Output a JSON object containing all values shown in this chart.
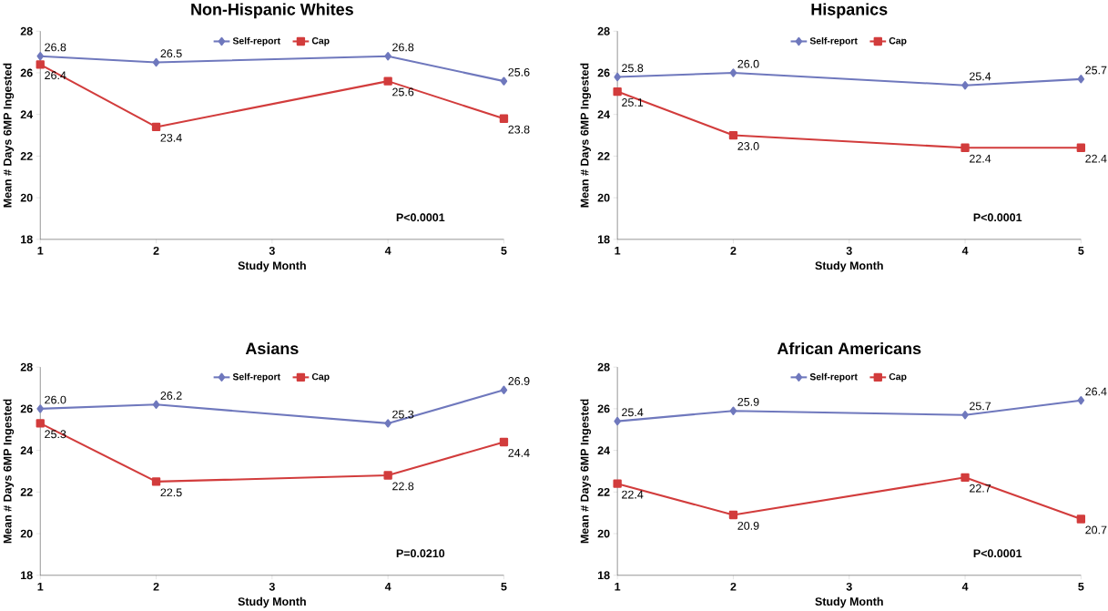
{
  "chart_data": [
    {
      "type": "line",
      "title": "Non-Hispanic Whites",
      "xlabel": "Study Month",
      "ylabel": "Mean # Days 6MP Ingested",
      "x": [
        1,
        2,
        4,
        5
      ],
      "xlim": [
        1,
        5
      ],
      "xticks": [
        1,
        2,
        3,
        4,
        5
      ],
      "ylim": [
        18,
        28
      ],
      "yticks": [
        18,
        20,
        22,
        24,
        26,
        28
      ],
      "legend": "top",
      "annotations": [
        "P<0.0001"
      ],
      "series": [
        {
          "name": "Self-report",
          "color": "#6f78bd",
          "marker": "diamond",
          "values": [
            26.8,
            26.5,
            26.8,
            25.6
          ],
          "value_labels": [
            "26.8",
            "26.5",
            "26.8",
            "25.6"
          ]
        },
        {
          "name": "Cap",
          "color": "#d23c3c",
          "marker": "square",
          "values": [
            26.4,
            23.4,
            25.6,
            23.8
          ],
          "value_labels": [
            "26.4",
            "23.4",
            "25.6",
            "23.8"
          ]
        }
      ]
    },
    {
      "type": "line",
      "title": "Hispanics",
      "xlabel": "Study Month",
      "ylabel": "Mean # Days 6MP Ingested",
      "x": [
        1,
        2,
        4,
        5
      ],
      "xlim": [
        1,
        5
      ],
      "xticks": [
        1,
        2,
        3,
        4,
        5
      ],
      "ylim": [
        18,
        28
      ],
      "yticks": [
        18,
        20,
        22,
        24,
        26,
        28
      ],
      "legend": "top",
      "annotations": [
        "P<0.0001"
      ],
      "series": [
        {
          "name": "Self-report",
          "color": "#6f78bd",
          "marker": "diamond",
          "values": [
            25.8,
            26.0,
            25.4,
            25.7
          ],
          "value_labels": [
            "25.8",
            "26.0",
            "25.4",
            "25.7"
          ]
        },
        {
          "name": "Cap",
          "color": "#d23c3c",
          "marker": "square",
          "values": [
            25.1,
            23.0,
            22.4,
            22.4
          ],
          "value_labels": [
            "25.1",
            "23.0",
            "22.4",
            "22.4"
          ]
        }
      ]
    },
    {
      "type": "line",
      "title": "Asians",
      "xlabel": "Study Month",
      "ylabel": "Mean # Days 6MP Ingested",
      "x": [
        1,
        2,
        4,
        5
      ],
      "xlim": [
        1,
        5
      ],
      "xticks": [
        1,
        2,
        3,
        4,
        5
      ],
      "ylim": [
        18,
        28
      ],
      "yticks": [
        18,
        20,
        22,
        24,
        26,
        28
      ],
      "legend": "top",
      "annotations": [
        "P=0.0210"
      ],
      "series": [
        {
          "name": "Self-report",
          "color": "#6f78bd",
          "marker": "diamond",
          "values": [
            26.0,
            26.2,
            25.3,
            26.9
          ],
          "value_labels": [
            "26.0",
            "26.2",
            "25.3",
            "26.9"
          ]
        },
        {
          "name": "Cap",
          "color": "#d23c3c",
          "marker": "square",
          "values": [
            25.3,
            22.5,
            22.8,
            24.4
          ],
          "value_labels": [
            "25.3",
            "22.5",
            "22.8",
            "24.4"
          ]
        }
      ]
    },
    {
      "type": "line",
      "title": "African Americans",
      "xlabel": "Study Month",
      "ylabel": "Mean # Days 6MP Ingested",
      "x": [
        1,
        2,
        4,
        5
      ],
      "xlim": [
        1,
        5
      ],
      "xticks": [
        1,
        2,
        3,
        4,
        5
      ],
      "ylim": [
        18,
        28
      ],
      "yticks": [
        18,
        20,
        22,
        24,
        26,
        28
      ],
      "legend": "top",
      "annotations": [
        "P<0.0001"
      ],
      "series": [
        {
          "name": "Self-report",
          "color": "#6f78bd",
          "marker": "diamond",
          "values": [
            25.4,
            25.9,
            25.7,
            26.4
          ],
          "value_labels": [
            "25.4",
            "25.9",
            "25.7",
            "26.4"
          ]
        },
        {
          "name": "Cap",
          "color": "#d23c3c",
          "marker": "square",
          "values": [
            22.4,
            20.9,
            22.7,
            20.7
          ],
          "value_labels": [
            "22.4",
            "20.9",
            "22.7",
            "20.7"
          ]
        }
      ]
    }
  ]
}
